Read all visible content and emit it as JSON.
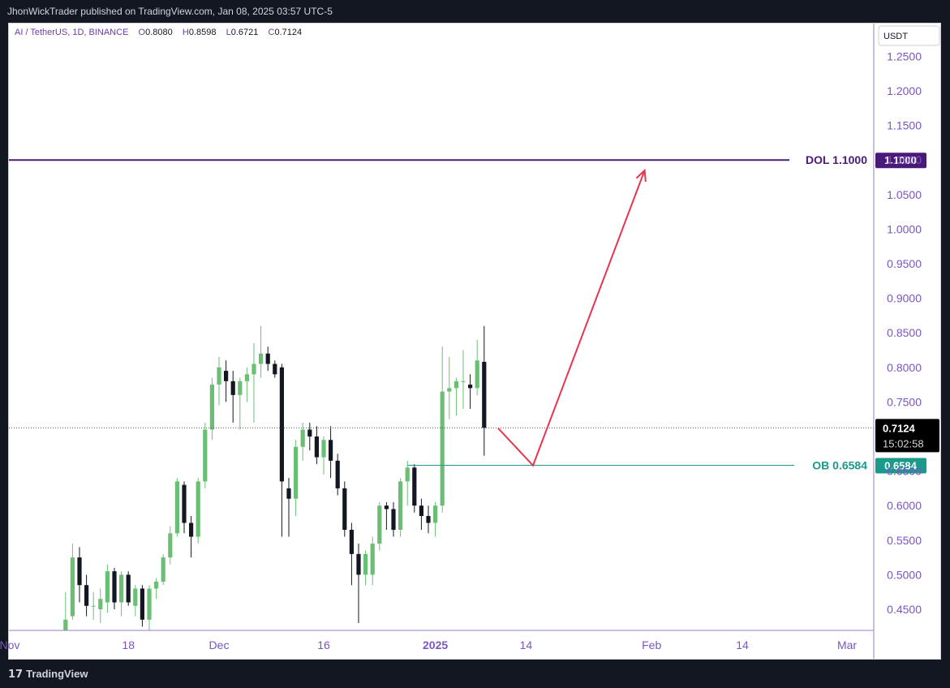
{
  "header": {
    "published_text": "JhonWickTrader published on TradingView.com, Jan 08, 2025 03:57 UTC-5"
  },
  "legend": {
    "symbol": "AI / TetherUS, 1D, BINANCE",
    "open_label": "O",
    "open": "0.8080",
    "high_label": "H",
    "high": "0.8598",
    "low_label": "L",
    "low": "0.6721",
    "close_label": "C",
    "close": "0.7124"
  },
  "price_axis": {
    "currency": "USDT",
    "current_price": "0.7124",
    "countdown": "15:02:58"
  },
  "footer": {
    "brand": "TradingView",
    "logo_icon": "tradingview-logo-icon"
  },
  "colors": {
    "up": "#6bbf74",
    "down": "#131722",
    "dol_line": "#4a1a7a",
    "ob_line": "#1a9a8a",
    "projection": "#e8344e",
    "axis_text": "#7b55c0"
  },
  "chart_data": {
    "type": "candlestick",
    "ylim": [
      0.42,
      1.28
    ],
    "y_ticks": [
      1.25,
      1.2,
      1.15,
      1.1,
      1.05,
      1.0,
      0.95,
      0.9,
      0.85,
      0.8,
      0.75,
      0.7,
      0.65,
      0.6,
      0.55,
      0.5,
      0.45
    ],
    "y_tick_labels": [
      "1.2500",
      "1.2000",
      "1.1500",
      "1.1000",
      "1.0500",
      "1.0000",
      "0.9500",
      "0.9000",
      "0.8500",
      "0.8000",
      "0.7500",
      "0.7000",
      "0.6500",
      "0.6000",
      "0.5500",
      "0.5000",
      "0.4500"
    ],
    "x_ticks": [
      {
        "date": "2024-11-01",
        "label": "Nov",
        "bold": false
      },
      {
        "date": "2024-11-18",
        "label": "18",
        "bold": false
      },
      {
        "date": "2024-12-01",
        "label": "Dec",
        "bold": false
      },
      {
        "date": "2024-12-16",
        "label": "16",
        "bold": false
      },
      {
        "date": "2025-01-01",
        "label": "2025",
        "bold": true
      },
      {
        "date": "2025-01-14",
        "label": "14",
        "bold": false
      },
      {
        "date": "2025-02-01",
        "label": "Feb",
        "bold": false
      },
      {
        "date": "2025-02-14",
        "label": "14",
        "bold": false
      },
      {
        "date": "2025-03-01",
        "label": "Mar",
        "bold": false
      }
    ],
    "candles": [
      {
        "date": "2024-11-09",
        "o": 0.42,
        "h": 0.475,
        "l": 0.41,
        "c": 0.435
      },
      {
        "date": "2024-11-10",
        "o": 0.44,
        "h": 0.545,
        "l": 0.435,
        "c": 0.525
      },
      {
        "date": "2024-11-11",
        "o": 0.525,
        "h": 0.54,
        "l": 0.46,
        "c": 0.485
      },
      {
        "date": "2024-11-12",
        "o": 0.485,
        "h": 0.5,
        "l": 0.44,
        "c": 0.455
      },
      {
        "date": "2024-11-13",
        "o": 0.455,
        "h": 0.475,
        "l": 0.435,
        "c": 0.455
      },
      {
        "date": "2024-11-14",
        "o": 0.45,
        "h": 0.48,
        "l": 0.43,
        "c": 0.465
      },
      {
        "date": "2024-11-15",
        "o": 0.46,
        "h": 0.515,
        "l": 0.445,
        "c": 0.505
      },
      {
        "date": "2024-11-16",
        "o": 0.505,
        "h": 0.51,
        "l": 0.45,
        "c": 0.46
      },
      {
        "date": "2024-11-17",
        "o": 0.46,
        "h": 0.505,
        "l": 0.44,
        "c": 0.5
      },
      {
        "date": "2024-11-18",
        "o": 0.5,
        "h": 0.505,
        "l": 0.455,
        "c": 0.46
      },
      {
        "date": "2024-11-19",
        "o": 0.455,
        "h": 0.485,
        "l": 0.44,
        "c": 0.48
      },
      {
        "date": "2024-11-20",
        "o": 0.48,
        "h": 0.485,
        "l": 0.425,
        "c": 0.435
      },
      {
        "date": "2024-11-21",
        "o": 0.435,
        "h": 0.485,
        "l": 0.42,
        "c": 0.48
      },
      {
        "date": "2024-11-22",
        "o": 0.48,
        "h": 0.495,
        "l": 0.465,
        "c": 0.49
      },
      {
        "date": "2024-11-23",
        "o": 0.49,
        "h": 0.53,
        "l": 0.485,
        "c": 0.525
      },
      {
        "date": "2024-11-24",
        "o": 0.525,
        "h": 0.57,
        "l": 0.515,
        "c": 0.56
      },
      {
        "date": "2024-11-25",
        "o": 0.56,
        "h": 0.64,
        "l": 0.555,
        "c": 0.635
      },
      {
        "date": "2024-11-26",
        "o": 0.63,
        "h": 0.635,
        "l": 0.56,
        "c": 0.575
      },
      {
        "date": "2024-11-27",
        "o": 0.575,
        "h": 0.585,
        "l": 0.525,
        "c": 0.555
      },
      {
        "date": "2024-11-28",
        "o": 0.555,
        "h": 0.64,
        "l": 0.545,
        "c": 0.635
      },
      {
        "date": "2024-11-29",
        "o": 0.635,
        "h": 0.72,
        "l": 0.625,
        "c": 0.71
      },
      {
        "date": "2024-11-30",
        "o": 0.71,
        "h": 0.785,
        "l": 0.695,
        "c": 0.775
      },
      {
        "date": "2024-12-01",
        "o": 0.775,
        "h": 0.815,
        "l": 0.745,
        "c": 0.8
      },
      {
        "date": "2024-12-02",
        "o": 0.795,
        "h": 0.81,
        "l": 0.75,
        "c": 0.78
      },
      {
        "date": "2024-12-03",
        "o": 0.78,
        "h": 0.795,
        "l": 0.72,
        "c": 0.76
      },
      {
        "date": "2024-12-04",
        "o": 0.76,
        "h": 0.785,
        "l": 0.71,
        "c": 0.78
      },
      {
        "date": "2024-12-05",
        "o": 0.78,
        "h": 0.8,
        "l": 0.75,
        "c": 0.79
      },
      {
        "date": "2024-12-06",
        "o": 0.79,
        "h": 0.835,
        "l": 0.72,
        "c": 0.805
      },
      {
        "date": "2024-12-07",
        "o": 0.805,
        "h": 0.86,
        "l": 0.785,
        "c": 0.82
      },
      {
        "date": "2024-12-08",
        "o": 0.82,
        "h": 0.83,
        "l": 0.795,
        "c": 0.805
      },
      {
        "date": "2024-12-09",
        "o": 0.805,
        "h": 0.81,
        "l": 0.785,
        "c": 0.79
      },
      {
        "date": "2024-12-10",
        "o": 0.8,
        "h": 0.805,
        "l": 0.555,
        "c": 0.635
      },
      {
        "date": "2024-12-11",
        "o": 0.625,
        "h": 0.64,
        "l": 0.555,
        "c": 0.61
      },
      {
        "date": "2024-12-12",
        "o": 0.61,
        "h": 0.695,
        "l": 0.585,
        "c": 0.685
      },
      {
        "date": "2024-12-13",
        "o": 0.685,
        "h": 0.72,
        "l": 0.665,
        "c": 0.71
      },
      {
        "date": "2024-12-14",
        "o": 0.71,
        "h": 0.72,
        "l": 0.68,
        "c": 0.7
      },
      {
        "date": "2024-12-15",
        "o": 0.7,
        "h": 0.715,
        "l": 0.66,
        "c": 0.67
      },
      {
        "date": "2024-12-16",
        "o": 0.67,
        "h": 0.7,
        "l": 0.645,
        "c": 0.695
      },
      {
        "date": "2024-12-17",
        "o": 0.695,
        "h": 0.715,
        "l": 0.64,
        "c": 0.665
      },
      {
        "date": "2024-12-18",
        "o": 0.665,
        "h": 0.675,
        "l": 0.615,
        "c": 0.625
      },
      {
        "date": "2024-12-19",
        "o": 0.625,
        "h": 0.635,
        "l": 0.555,
        "c": 0.565
      },
      {
        "date": "2024-12-20",
        "o": 0.565,
        "h": 0.575,
        "l": 0.485,
        "c": 0.53
      },
      {
        "date": "2024-12-21",
        "o": 0.53,
        "h": 0.545,
        "l": 0.43,
        "c": 0.5
      },
      {
        "date": "2024-12-22",
        "o": 0.5,
        "h": 0.535,
        "l": 0.485,
        "c": 0.53
      },
      {
        "date": "2024-12-23",
        "o": 0.5,
        "h": 0.555,
        "l": 0.485,
        "c": 0.545
      },
      {
        "date": "2024-12-24",
        "o": 0.545,
        "h": 0.605,
        "l": 0.535,
        "c": 0.6
      },
      {
        "date": "2024-12-25",
        "o": 0.6,
        "h": 0.605,
        "l": 0.565,
        "c": 0.595
      },
      {
        "date": "2024-12-26",
        "o": 0.595,
        "h": 0.605,
        "l": 0.555,
        "c": 0.565
      },
      {
        "date": "2024-12-27",
        "o": 0.565,
        "h": 0.64,
        "l": 0.555,
        "c": 0.635
      },
      {
        "date": "2024-12-28",
        "o": 0.635,
        "h": 0.665,
        "l": 0.6,
        "c": 0.655
      },
      {
        "date": "2024-12-29",
        "o": 0.655,
        "h": 0.66,
        "l": 0.59,
        "c": 0.6
      },
      {
        "date": "2024-12-30",
        "o": 0.6,
        "h": 0.61,
        "l": 0.565,
        "c": 0.585
      },
      {
        "date": "2024-12-31",
        "o": 0.585,
        "h": 0.6,
        "l": 0.56,
        "c": 0.575
      },
      {
        "date": "2025-01-01",
        "o": 0.575,
        "h": 0.605,
        "l": 0.555,
        "c": 0.6
      },
      {
        "date": "2025-01-02",
        "o": 0.6,
        "h": 0.83,
        "l": 0.59,
        "c": 0.765
      },
      {
        "date": "2025-01-03",
        "o": 0.765,
        "h": 0.815,
        "l": 0.725,
        "c": 0.77
      },
      {
        "date": "2025-01-04",
        "o": 0.77,
        "h": 0.785,
        "l": 0.73,
        "c": 0.78
      },
      {
        "date": "2025-01-05",
        "o": 0.78,
        "h": 0.825,
        "l": 0.74,
        "c": 0.78
      },
      {
        "date": "2025-01-06",
        "o": 0.775,
        "h": 0.79,
        "l": 0.74,
        "c": 0.77
      },
      {
        "date": "2025-01-07",
        "o": 0.77,
        "h": 0.84,
        "l": 0.76,
        "c": 0.81
      },
      {
        "date": "2025-01-08",
        "o": 0.808,
        "h": 0.8598,
        "l": 0.6721,
        "c": 0.7124
      }
    ],
    "levels": [
      {
        "label": "DOL 1.1000",
        "price": 1.1,
        "axis_label": "1.1000"
      },
      {
        "label": "OB 0.6584",
        "price": 0.6584,
        "axis_label": "0.6584",
        "start_date": "2024-12-28"
      }
    ],
    "current_price": 0.7124,
    "projection_path": [
      {
        "date": "2025-01-10",
        "price": 0.712
      },
      {
        "date": "2025-01-15",
        "price": 0.658
      },
      {
        "date": "2025-01-31",
        "price": 1.085
      }
    ]
  }
}
